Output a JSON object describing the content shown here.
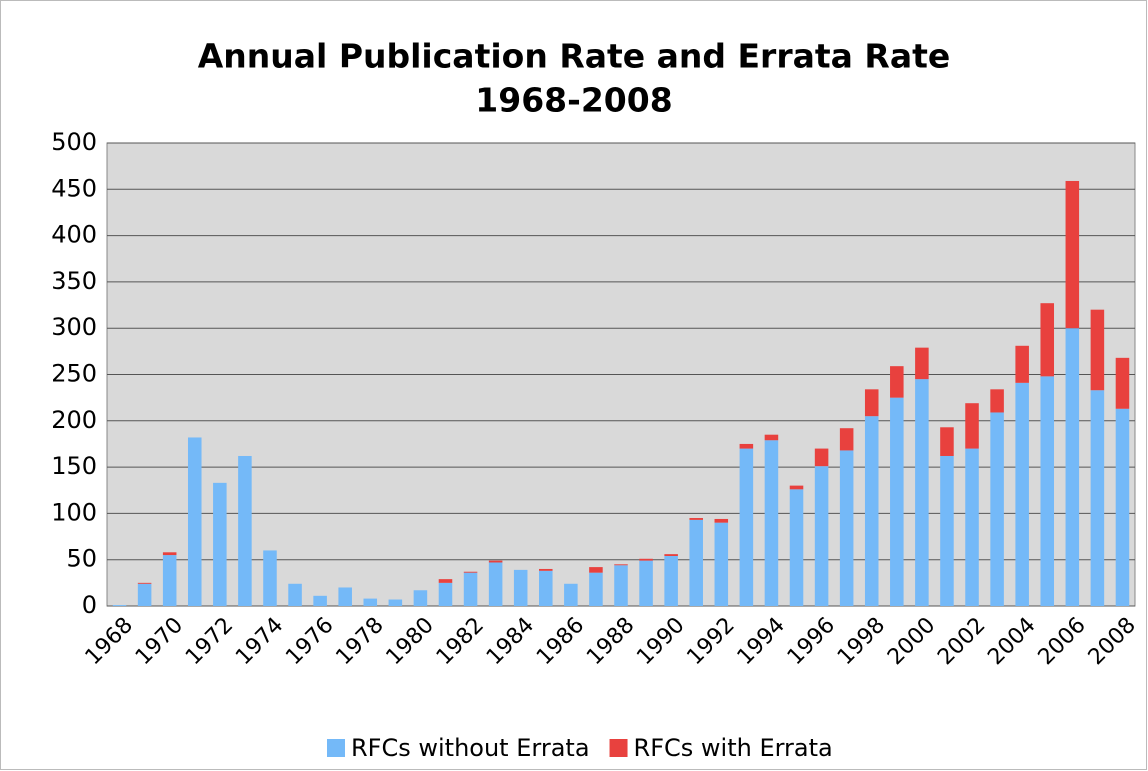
{
  "chart_data": {
    "type": "stacked_bar",
    "title": "Annual Publication Rate and Errata Rate",
    "subtitle": "1968-2008",
    "categories": [
      "1968",
      null,
      "1970",
      null,
      "1972",
      null,
      "1974",
      null,
      "1976",
      null,
      "1978",
      null,
      "1980",
      null,
      "1982",
      null,
      "1984",
      null,
      "1986",
      null,
      "1988",
      null,
      "1990",
      null,
      "1992",
      null,
      "1994",
      null,
      "1996",
      null,
      "1998",
      null,
      "2000",
      null,
      "2002",
      null,
      "2004",
      null,
      "2006",
      null,
      "2008"
    ],
    "series": [
      {
        "name": "RFCs without Errata",
        "color": "#74b9f8",
        "values": [
          1,
          24,
          55,
          182,
          133,
          162,
          60,
          24,
          11,
          20,
          8,
          7,
          17,
          25,
          36,
          47,
          39,
          38,
          24,
          36,
          44,
          49,
          54,
          93,
          90,
          170,
          179,
          126,
          151,
          168,
          205,
          225,
          245,
          162,
          170,
          209,
          241,
          248,
          300,
          233,
          213
        ]
      },
      {
        "name": "RFCs with Errata",
        "color": "#e8413e",
        "values": [
          0,
          1,
          3,
          0,
          0,
          0,
          0,
          0,
          0,
          0,
          0,
          0,
          0,
          4,
          1,
          2,
          0,
          2,
          0,
          6,
          1,
          2,
          2,
          2,
          4,
          5,
          6,
          4,
          19,
          24,
          29,
          34,
          34,
          31,
          49,
          25,
          40,
          79,
          159,
          87,
          55
        ]
      }
    ],
    "ylim": [
      0,
      500
    ],
    "yticks": [
      0,
      50,
      100,
      150,
      200,
      250,
      300,
      350,
      400,
      450,
      500
    ],
    "grid": true,
    "legend": "bottom"
  }
}
